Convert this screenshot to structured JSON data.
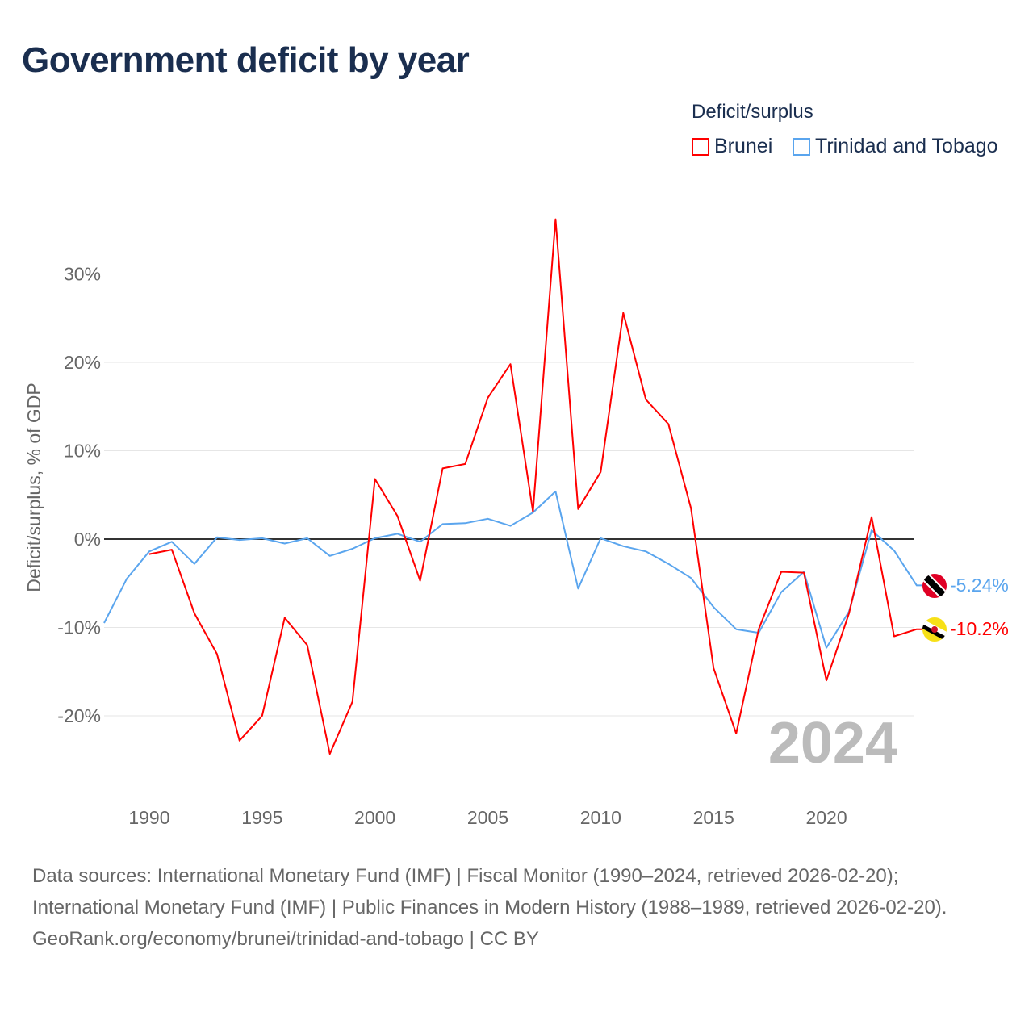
{
  "title": "Government deficit by year",
  "legend": {
    "title": "Deficit/surplus",
    "items": [
      {
        "label": "Brunei",
        "color": "#ff0000"
      },
      {
        "label": "Trinidad and Tobago",
        "color": "#5aa5ee"
      }
    ]
  },
  "chart_data": {
    "type": "line",
    "title": "Government deficit by year",
    "ylabel": "Deficit/surplus, % of GDP",
    "xlabel": "",
    "xlim": [
      1988,
      2024
    ],
    "ylim": [
      -28,
      37
    ],
    "x_ticks": [
      "1990",
      "1995",
      "2000",
      "2005",
      "2010",
      "2015",
      "2020"
    ],
    "y_ticks": [
      {
        "value": 30,
        "label": "30%"
      },
      {
        "value": 20,
        "label": "20%"
      },
      {
        "value": 10,
        "label": "10%"
      },
      {
        "value": 0,
        "label": "0%"
      },
      {
        "value": -10,
        "label": "-10%"
      },
      {
        "value": -20,
        "label": "-20%"
      }
    ],
    "grid": true,
    "year_watermark": "2024",
    "series": [
      {
        "name": "Brunei",
        "color": "#ff0000",
        "end_label": "-10.2%",
        "x": [
          1990,
          1991,
          1992,
          1993,
          1994,
          1995,
          1996,
          1997,
          1998,
          1999,
          2000,
          2001,
          2002,
          2003,
          2004,
          2005,
          2006,
          2007,
          2008,
          2009,
          2010,
          2011,
          2012,
          2013,
          2014,
          2015,
          2016,
          2017,
          2018,
          2019,
          2020,
          2021,
          2022,
          2023,
          2024
        ],
        "values": [
          -1.7,
          -1.2,
          -8.4,
          -13,
          -22.8,
          -20,
          -8.9,
          -12,
          -24.3,
          -18.4,
          6.8,
          2.6,
          -4.7,
          8.0,
          8.5,
          16,
          19.8,
          3.1,
          36.2,
          3.4,
          7.6,
          25.6,
          15.8,
          13,
          3.5,
          -14.6,
          -22,
          -10.2,
          -3.7,
          -3.8,
          -16,
          -8.4,
          2.5,
          -11,
          -10.2
        ]
      },
      {
        "name": "Trinidad and Tobago",
        "color": "#5aa5ee",
        "end_label": "-5.24%",
        "x": [
          1988,
          1989,
          1990,
          1991,
          1992,
          1993,
          1994,
          1995,
          1996,
          1997,
          1998,
          1999,
          2000,
          2001,
          2002,
          2003,
          2004,
          2005,
          2006,
          2007,
          2008,
          2009,
          2010,
          2011,
          2012,
          2013,
          2014,
          2015,
          2016,
          2017,
          2018,
          2019,
          2020,
          2021,
          2022,
          2023,
          2024
        ],
        "values": [
          -9.5,
          -4.5,
          -1.4,
          -0.3,
          -2.8,
          0.2,
          -0.1,
          0.1,
          -0.5,
          0.1,
          -1.9,
          -1.1,
          0.1,
          0.6,
          -0.3,
          1.7,
          1.8,
          2.3,
          1.5,
          3.0,
          5.4,
          -5.6,
          0.1,
          -0.8,
          -1.4,
          -2.8,
          -4.4,
          -7.7,
          -10.2,
          -10.6,
          -6,
          -3.7,
          -12.3,
          -8.2,
          1.0,
          -1.3,
          -5.24
        ]
      }
    ]
  },
  "footer": {
    "sources": "Data sources: International Monetary Fund (IMF) | Fiscal Monitor (1990–2024, retrieved 2026-02-20); International Monetary Fund (IMF) | Public Finances in Modern History (1988–1989, retrieved 2026-02-20).",
    "credit": "GeoRank.org/economy/brunei/trinidad-and-tobago | CC BY"
  }
}
